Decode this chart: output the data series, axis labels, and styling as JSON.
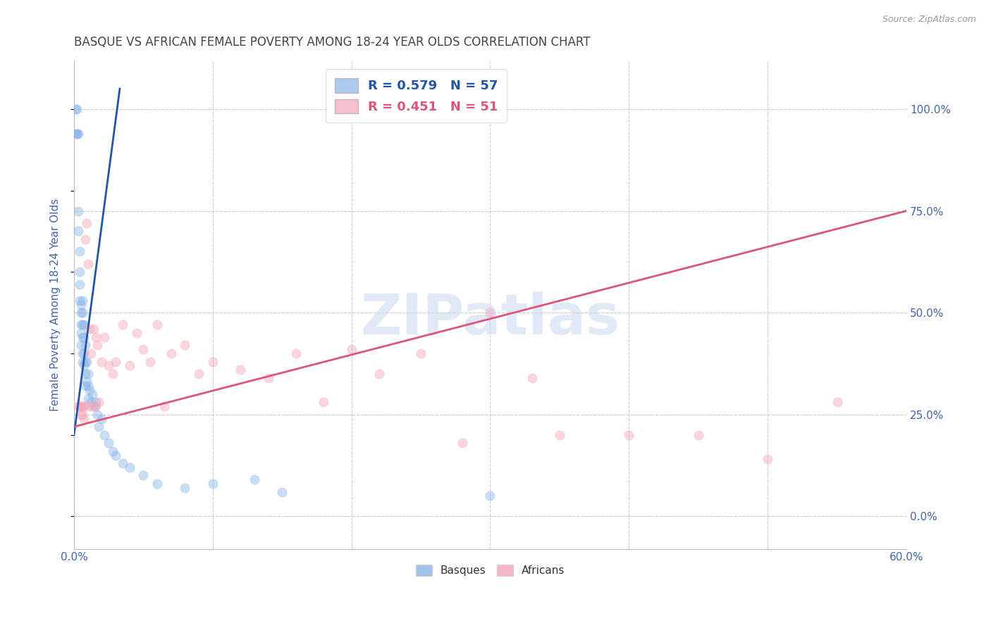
{
  "title": "BASQUE VS AFRICAN FEMALE POVERTY AMONG 18-24 YEAR OLDS CORRELATION CHART",
  "source": "Source: ZipAtlas.com",
  "ylabel": "Female Poverty Among 18-24 Year Olds",
  "xlim": [
    0.0,
    0.6
  ],
  "ylim": [
    -0.08,
    1.12
  ],
  "right_yticks": [
    0.0,
    0.25,
    0.5,
    0.75,
    1.0
  ],
  "right_yticklabels": [
    "0.0%",
    "25.0%",
    "50.0%",
    "75.0%",
    "100.0%"
  ],
  "grid_yticks": [
    0.0,
    0.25,
    0.5,
    0.75,
    1.0
  ],
  "xticks": [
    0.0,
    0.1,
    0.2,
    0.3,
    0.4,
    0.5,
    0.6
  ],
  "xticklabels_visible": [
    "0.0%",
    "",
    "",
    "",
    "",
    "",
    "60.0%"
  ],
  "legend_blue_label": "R = 0.579   N = 57",
  "legend_pink_label": "R = 0.451   N = 51",
  "watermark": "ZIPatlas",
  "basques_color": "#89b4e8",
  "africans_color": "#f4a7b9",
  "blue_line_color": "#2255aa",
  "pink_line_color": "#dd5577",
  "title_color": "#444444",
  "axis_label_color": "#4466aa",
  "tick_color": "#4466aa",
  "grid_color": "#cccccc",
  "basques_x": [
    0.001,
    0.001,
    0.002,
    0.002,
    0.002,
    0.003,
    0.003,
    0.003,
    0.004,
    0.004,
    0.004,
    0.004,
    0.005,
    0.005,
    0.005,
    0.005,
    0.005,
    0.006,
    0.006,
    0.006,
    0.006,
    0.006,
    0.006,
    0.007,
    0.007,
    0.007,
    0.007,
    0.008,
    0.008,
    0.008,
    0.008,
    0.009,
    0.009,
    0.01,
    0.01,
    0.01,
    0.011,
    0.012,
    0.013,
    0.015,
    0.016,
    0.017,
    0.018,
    0.02,
    0.022,
    0.025,
    0.028,
    0.03,
    0.035,
    0.04,
    0.05,
    0.06,
    0.08,
    0.1,
    0.13,
    0.15,
    0.3
  ],
  "basques_y": [
    1.0,
    0.94,
    1.0,
    0.94,
    0.94,
    0.94,
    0.75,
    0.7,
    0.65,
    0.6,
    0.57,
    0.53,
    0.52,
    0.5,
    0.47,
    0.45,
    0.42,
    0.53,
    0.5,
    0.47,
    0.44,
    0.4,
    0.38,
    0.47,
    0.44,
    0.4,
    0.37,
    0.42,
    0.38,
    0.35,
    0.32,
    0.38,
    0.33,
    0.35,
    0.32,
    0.29,
    0.31,
    0.28,
    0.3,
    0.27,
    0.28,
    0.25,
    0.22,
    0.24,
    0.2,
    0.18,
    0.16,
    0.15,
    0.13,
    0.12,
    0.1,
    0.08,
    0.07,
    0.08,
    0.09,
    0.06,
    0.05
  ],
  "africans_x": [
    0.003,
    0.004,
    0.005,
    0.005,
    0.006,
    0.006,
    0.007,
    0.007,
    0.008,
    0.009,
    0.01,
    0.01,
    0.011,
    0.012,
    0.013,
    0.014,
    0.015,
    0.016,
    0.017,
    0.018,
    0.02,
    0.022,
    0.025,
    0.028,
    0.03,
    0.035,
    0.04,
    0.045,
    0.05,
    0.055,
    0.06,
    0.065,
    0.07,
    0.08,
    0.09,
    0.1,
    0.12,
    0.14,
    0.16,
    0.18,
    0.2,
    0.22,
    0.25,
    0.28,
    0.3,
    0.33,
    0.35,
    0.4,
    0.45,
    0.5,
    0.55
  ],
  "africans_y": [
    0.27,
    0.27,
    0.27,
    0.25,
    0.27,
    0.25,
    0.27,
    0.24,
    0.68,
    0.72,
    0.62,
    0.27,
    0.46,
    0.4,
    0.27,
    0.46,
    0.27,
    0.44,
    0.42,
    0.28,
    0.38,
    0.44,
    0.37,
    0.35,
    0.38,
    0.47,
    0.37,
    0.45,
    0.41,
    0.38,
    0.47,
    0.27,
    0.4,
    0.42,
    0.35,
    0.38,
    0.36,
    0.34,
    0.4,
    0.28,
    0.41,
    0.35,
    0.4,
    0.18,
    0.5,
    0.34,
    0.2,
    0.2,
    0.2,
    0.14,
    0.28
  ],
  "blue_trend_x": [
    0.0,
    0.033
  ],
  "blue_trend_y": [
    0.2,
    1.05
  ],
  "pink_trend_x": [
    0.0,
    0.6
  ],
  "pink_trend_y": [
    0.22,
    0.75
  ],
  "marker_size": 90,
  "marker_alpha": 0.45
}
